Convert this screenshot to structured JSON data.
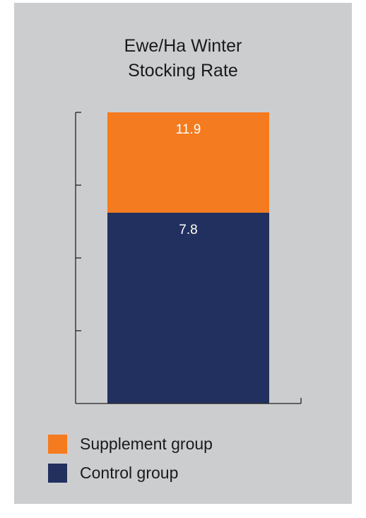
{
  "chart_data": {
    "type": "bar",
    "stacked": true,
    "title": [
      "Ewe/Ha Winter",
      "Stocking Rate"
    ],
    "categories": [
      ""
    ],
    "series": [
      {
        "name": "Control group",
        "values": [
          7.8
        ],
        "color": "#22305f",
        "label": "7.8"
      },
      {
        "name": "Supplement group",
        "values": [
          4.1
        ],
        "color": "#f47b20",
        "label": "11.9"
      }
    ],
    "ylim": [
      0,
      11.9
    ],
    "y_tick_labels_shown": false,
    "legend_position": "bottom-left",
    "legend": [
      "Supplement group",
      "Control group"
    ]
  }
}
